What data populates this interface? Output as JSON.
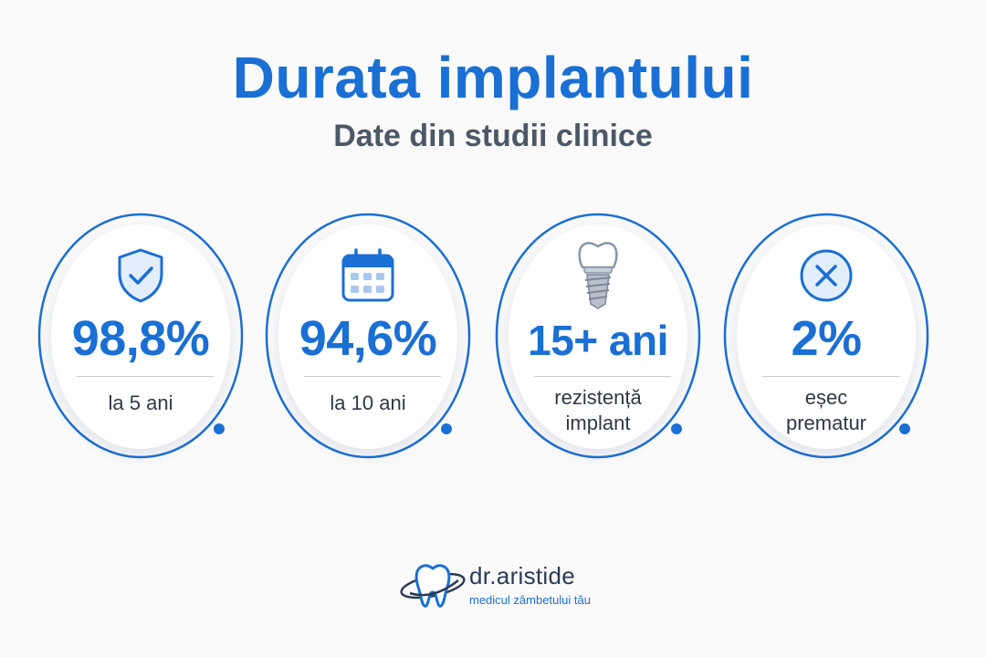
{
  "header": {
    "title": "Durata implantului",
    "subtitle": "Date din studii clinice"
  },
  "stats": [
    {
      "icon": "shield-check-icon",
      "value": "98,8%",
      "label": "la 5 ani"
    },
    {
      "icon": "calendar-icon",
      "value": "94,6%",
      "label": "la 10 ani"
    },
    {
      "icon": "dental-implant-icon",
      "value": "15+ ani",
      "label_line1": "rezistență",
      "label_line2": "implant"
    },
    {
      "icon": "x-circle-icon",
      "value": "2%",
      "label_line1": "eșec",
      "label_line2": "prematur"
    }
  ],
  "logo": {
    "brand": "dr.aristide",
    "tagline": "medicul zâmbetului tău"
  },
  "colors": {
    "accent": "#1a6fd4",
    "subtitle": "#4d5866",
    "background": "#fafafa"
  }
}
